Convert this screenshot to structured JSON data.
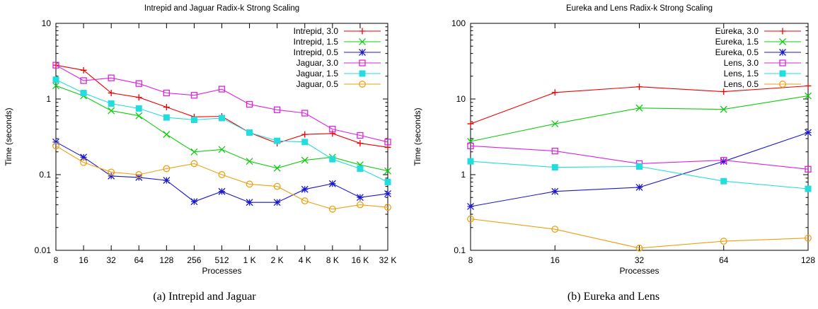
{
  "chart_data": [
    {
      "type": "line",
      "title": "Intrepid and Jaguar Radix-k Strong Scaling",
      "xlabel": "Processes",
      "ylabel": "Time (seconds)",
      "caption": "(a) Intrepid and Jaguar",
      "yscale": "log",
      "ylim": [
        0.01,
        10
      ],
      "yticks": [
        0.01,
        0.1,
        1,
        10
      ],
      "ytick_labels": [
        "0.01",
        "0.1",
        "1",
        "10"
      ],
      "categories": [
        "8",
        "16",
        "32",
        "64",
        "128",
        "256",
        "512",
        "1 K",
        "2 K",
        "4 K",
        "8 K",
        "16 K",
        "32 K"
      ],
      "grid": false,
      "legend_position": "top-right",
      "series": [
        {
          "name": "Intrepid, 3.0",
          "color": "#ee0000",
          "marker": "plus",
          "values": [
            2.8,
            2.4,
            1.2,
            1.05,
            0.78,
            0.58,
            0.59,
            0.36,
            0.26,
            0.34,
            0.35,
            0.26,
            0.23
          ]
        },
        {
          "name": "Intrepid, 1.5",
          "color": "#11cc11",
          "marker": "x",
          "values": [
            1.5,
            1.1,
            0.7,
            0.6,
            0.34,
            0.2,
            0.215,
            0.15,
            0.122,
            0.155,
            0.17,
            0.135,
            0.112
          ]
        },
        {
          "name": "Intrepid, 0.5",
          "color": "#1a1acc",
          "marker": "star",
          "values": [
            0.27,
            0.17,
            0.096,
            0.092,
            0.084,
            0.044,
            0.06,
            0.043,
            0.043,
            0.064,
            0.076,
            0.05,
            0.056
          ]
        },
        {
          "name": "Jaguar, 3.0",
          "color": "#dd22dd",
          "marker": "square-open",
          "values": [
            2.8,
            1.75,
            1.9,
            1.6,
            1.2,
            1.12,
            1.35,
            0.85,
            0.72,
            0.65,
            0.4,
            0.33,
            0.27
          ]
        },
        {
          "name": "Jaguar, 1.5",
          "color": "#22dddd",
          "marker": "square-filled",
          "values": [
            1.8,
            1.2,
            0.87,
            0.75,
            0.57,
            0.53,
            0.56,
            0.36,
            0.28,
            0.27,
            0.16,
            0.12,
            0.08
          ]
        },
        {
          "name": "Jaguar, 0.5",
          "color": "#eea010",
          "marker": "circle-open",
          "values": [
            0.24,
            0.145,
            0.108,
            0.1,
            0.12,
            0.14,
            0.1,
            0.075,
            0.07,
            0.045,
            0.035,
            0.04,
            0.037
          ]
        }
      ]
    },
    {
      "type": "line",
      "title": "Eureka and Lens Radix-k Strong Scaling",
      "xlabel": "Processes",
      "ylabel": "Time (seconds)",
      "caption": "(b) Eureka and Lens",
      "yscale": "log",
      "ylim": [
        0.1,
        100
      ],
      "yticks": [
        0.1,
        1,
        10,
        100
      ],
      "ytick_labels": [
        "0.1",
        "1",
        "10",
        "100"
      ],
      "categories": [
        "8",
        "16",
        "32",
        "64",
        "128"
      ],
      "grid": false,
      "legend_position": "top-right",
      "series": [
        {
          "name": "Eureka, 3.0",
          "color": "#ee0000",
          "marker": "plus",
          "values": [
            4.7,
            12.2,
            14.5,
            12.5,
            14.9
          ]
        },
        {
          "name": "Eureka, 1.5",
          "color": "#11cc11",
          "marker": "x",
          "values": [
            2.75,
            4.7,
            7.6,
            7.3,
            11.0
          ]
        },
        {
          "name": "Eureka, 0.5",
          "color": "#1a1acc",
          "marker": "star",
          "values": [
            0.38,
            0.6,
            0.68,
            1.5,
            3.6
          ]
        },
        {
          "name": "Lens, 3.0",
          "color": "#dd22dd",
          "marker": "square-open",
          "values": [
            2.4,
            2.05,
            1.4,
            1.55,
            1.18
          ]
        },
        {
          "name": "Lens, 1.5",
          "color": "#22dddd",
          "marker": "square-filled",
          "values": [
            1.5,
            1.25,
            1.28,
            0.82,
            0.65
          ]
        },
        {
          "name": "Lens, 0.5",
          "color": "#eea010",
          "marker": "circle-open",
          "values": [
            0.26,
            0.19,
            0.107,
            0.132,
            0.145
          ]
        }
      ]
    }
  ]
}
